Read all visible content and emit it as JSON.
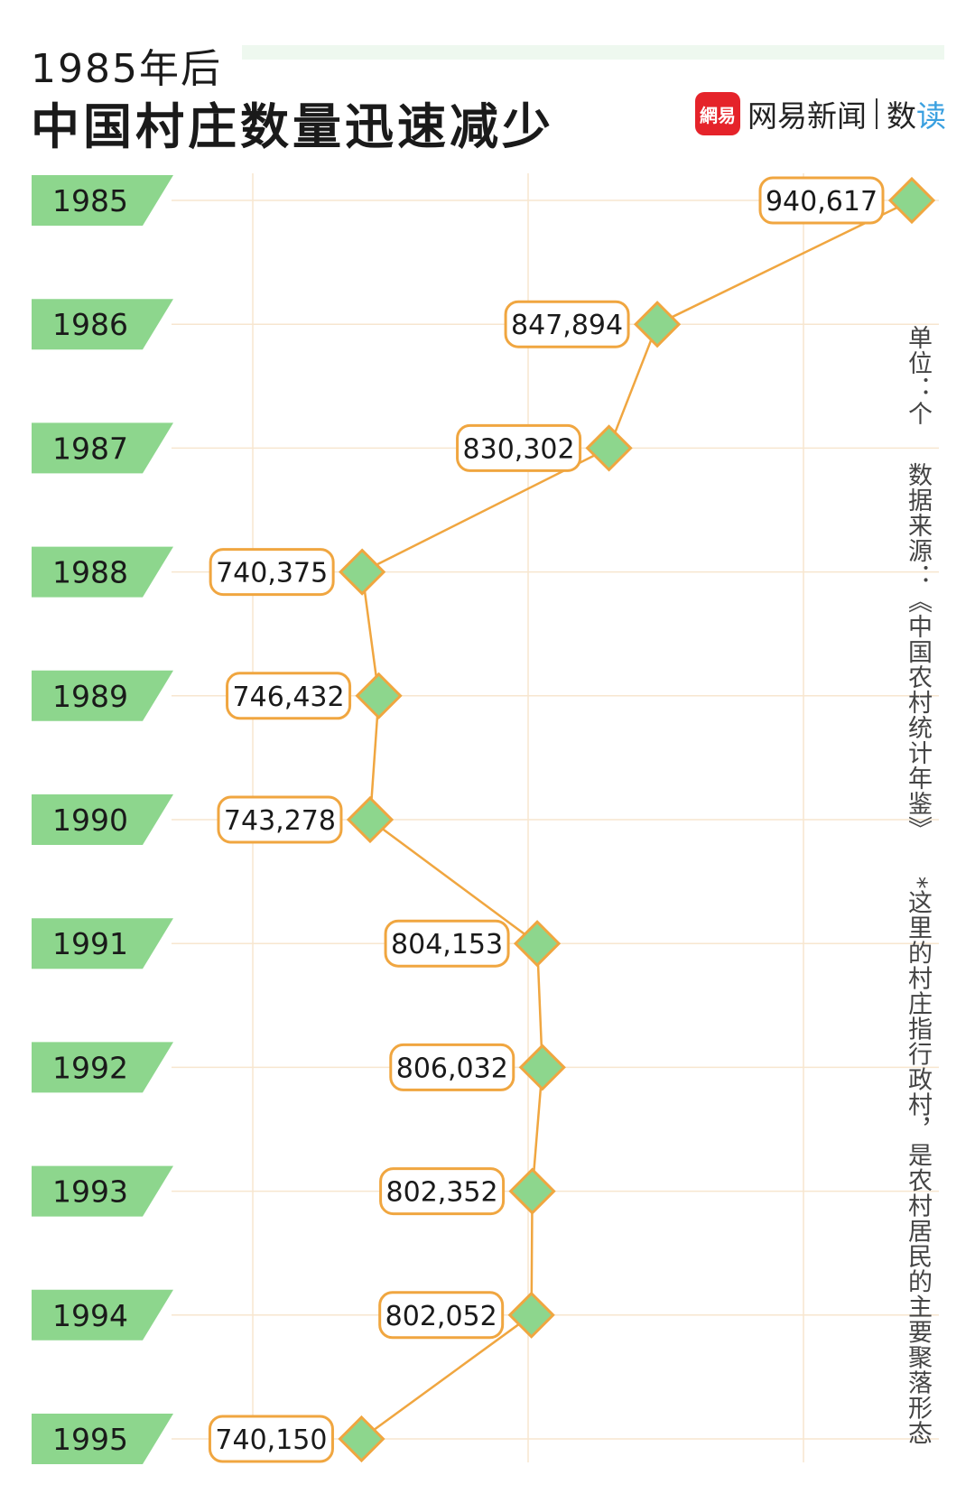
{
  "header": {
    "subtitle": "1985年后",
    "title": "中国村庄数量迅速减少",
    "brand_logo": "網易",
    "brand_name": "网易新闻",
    "brand_column_pre": "数",
    "brand_column_post": "读"
  },
  "side_note": {
    "unit": "单位：个",
    "source": "数据来源：《中国农村统计年鉴》",
    "footnote": "*这里的村庄指行政村，是农村居民的主要聚落形态"
  },
  "colors": {
    "band": "#8dd68d",
    "marker_fill": "#8dd68d",
    "accent": "#f0a640",
    "grid": "#f7e6cf"
  },
  "chart_data": {
    "type": "line",
    "orientation": "vertical",
    "title": "中国村庄数量迅速减少",
    "categories": [
      "1985",
      "1986",
      "1987",
      "1988",
      "1989",
      "1990",
      "1991",
      "1992",
      "1993",
      "1994",
      "1995"
    ],
    "values": [
      940617,
      847894,
      830302,
      740375,
      746432,
      743278,
      804153,
      806032,
      802352,
      802052,
      740150
    ],
    "value_labels": [
      "940,617",
      "847,894",
      "830,302",
      "740,375",
      "746,432",
      "743,278",
      "804,153",
      "806,032",
      "802,352",
      "802,052",
      "740,150"
    ],
    "unit": "个",
    "grid": true
  }
}
